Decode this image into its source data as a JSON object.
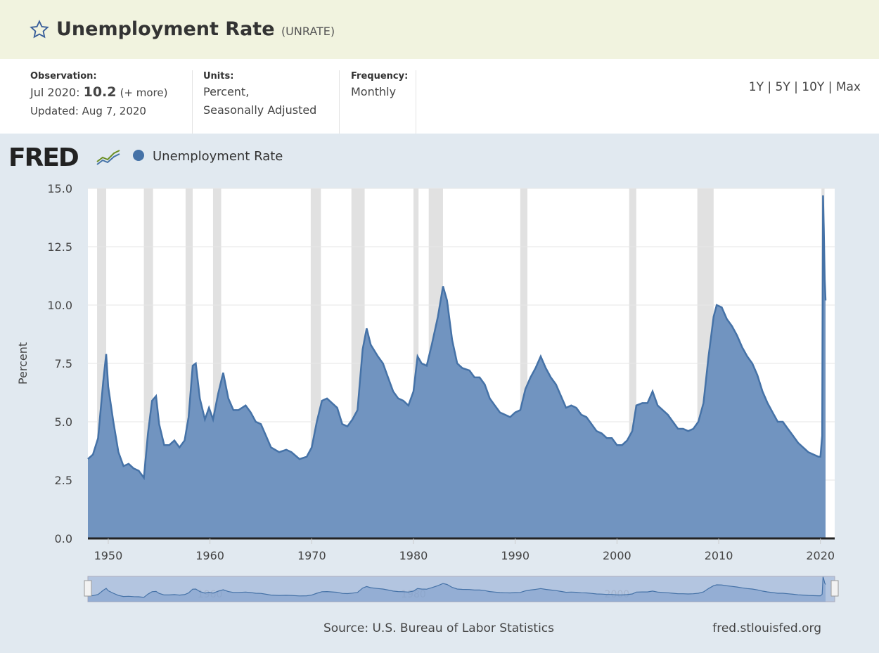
{
  "header": {
    "title": "Unemployment Rate",
    "series_id": "(UNRATE)",
    "observation_label": "Observation:",
    "observation_date": "Jul 2020:",
    "observation_value": "10.2",
    "more": "(+ more)",
    "updated": "Updated: Aug 7, 2020",
    "units_label": "Units:",
    "units_1": "Percent,",
    "units_2": "Seasonally Adjusted",
    "frequency_label": "Frequency:",
    "frequency": "Monthly",
    "ranges": [
      "1Y",
      "5Y",
      "10Y",
      "Max"
    ]
  },
  "logo": "FRED",
  "chart_data": {
    "type": "area",
    "y_label": "Percent",
    "color": "#4572a7",
    "fill": "#7194c0",
    "grid": true,
    "xlim": [
      1948,
      2021.4
    ],
    "xticks": [
      1950,
      1960,
      1970,
      1980,
      1990,
      2000,
      2010,
      2020
    ],
    "ylim": [
      0,
      15
    ],
    "yticks": [
      {
        "value": 0,
        "label": "0.0"
      },
      {
        "value": 2.5,
        "label": "2.5"
      },
      {
        "value": 5,
        "label": "5.0"
      },
      {
        "value": 7.5,
        "label": "7.5"
      },
      {
        "value": 10,
        "label": "10.0"
      },
      {
        "value": 12.5,
        "label": "12.5"
      },
      {
        "value": 15,
        "label": "15.0"
      }
    ],
    "recessions": [
      [
        1948.9,
        1949.8
      ],
      [
        1953.5,
        1954.4
      ],
      [
        1957.6,
        1958.3
      ],
      [
        1960.3,
        1961.1
      ],
      [
        1969.9,
        1970.9
      ],
      [
        1973.9,
        1975.2
      ],
      [
        1980.0,
        1980.5
      ],
      [
        1981.5,
        1982.9
      ],
      [
        1990.5,
        1991.2
      ],
      [
        2001.2,
        2001.9
      ],
      [
        2007.9,
        2009.5
      ],
      [
        2020.1,
        2020.4
      ]
    ],
    "x": [
      1948.0,
      1948.5,
      1949.0,
      1949.5,
      1949.8,
      1950.0,
      1950.5,
      1951.0,
      1951.5,
      1952.0,
      1952.5,
      1953.0,
      1953.5,
      1953.9,
      1954.3,
      1954.7,
      1955.0,
      1955.5,
      1956.0,
      1956.5,
      1957.0,
      1957.5,
      1957.9,
      1958.3,
      1958.6,
      1959.0,
      1959.5,
      1959.9,
      1960.3,
      1960.8,
      1961.3,
      1961.8,
      1962.3,
      1962.8,
      1963.5,
      1964.0,
      1964.5,
      1965.0,
      1965.5,
      1966.0,
      1966.8,
      1967.5,
      1968.0,
      1968.8,
      1969.5,
      1970.0,
      1970.5,
      1971.0,
      1971.5,
      1972.0,
      1972.5,
      1973.0,
      1973.5,
      1974.0,
      1974.5,
      1975.0,
      1975.4,
      1975.8,
      1976.5,
      1977.0,
      1977.5,
      1978.0,
      1978.5,
      1979.0,
      1979.5,
      1980.0,
      1980.4,
      1980.8,
      1981.3,
      1981.8,
      1982.4,
      1982.9,
      1983.3,
      1983.8,
      1984.3,
      1984.8,
      1985.5,
      1986.0,
      1986.5,
      1987.0,
      1987.5,
      1988.0,
      1988.5,
      1989.0,
      1989.5,
      1990.0,
      1990.5,
      1991.0,
      1991.5,
      1992.0,
      1992.5,
      1993.0,
      1993.5,
      1994.0,
      1994.5,
      1995.0,
      1995.5,
      1996.0,
      1996.5,
      1997.0,
      1997.5,
      1998.0,
      1998.5,
      1999.0,
      1999.5,
      2000.0,
      2000.5,
      2001.0,
      2001.5,
      2001.9,
      2002.5,
      2003.0,
      2003.5,
      2004.0,
      2004.5,
      2005.0,
      2005.5,
      2006.0,
      2006.5,
      2007.0,
      2007.5,
      2008.0,
      2008.5,
      2009.0,
      2009.5,
      2009.8,
      2010.3,
      2010.8,
      2011.3,
      2011.8,
      2012.3,
      2012.8,
      2013.3,
      2013.8,
      2014.3,
      2014.8,
      2015.3,
      2015.8,
      2016.3,
      2016.8,
      2017.3,
      2017.8,
      2018.3,
      2018.8,
      2019.3,
      2019.8,
      2020.0,
      2020.17,
      2020.25,
      2020.33,
      2020.42,
      2020.5
    ],
    "series": [
      {
        "name": "Unemployment Rate",
        "values": [
          3.4,
          3.6,
          4.3,
          6.7,
          7.9,
          6.5,
          5.0,
          3.7,
          3.1,
          3.2,
          3.0,
          2.9,
          2.6,
          4.5,
          5.9,
          6.1,
          4.9,
          4.0,
          4.0,
          4.2,
          3.9,
          4.2,
          5.2,
          7.4,
          7.5,
          6.0,
          5.1,
          5.6,
          5.1,
          6.2,
          7.1,
          6.0,
          5.5,
          5.5,
          5.7,
          5.4,
          5.0,
          4.9,
          4.4,
          3.9,
          3.7,
          3.8,
          3.7,
          3.4,
          3.5,
          3.9,
          5.0,
          5.9,
          6.0,
          5.8,
          5.6,
          4.9,
          4.8,
          5.1,
          5.5,
          8.1,
          9.0,
          8.3,
          7.8,
          7.5,
          6.9,
          6.3,
          6.0,
          5.9,
          5.7,
          6.3,
          7.8,
          7.5,
          7.4,
          8.3,
          9.5,
          10.8,
          10.2,
          8.5,
          7.5,
          7.3,
          7.2,
          6.9,
          6.9,
          6.6,
          6.0,
          5.7,
          5.4,
          5.3,
          5.2,
          5.4,
          5.5,
          6.4,
          6.9,
          7.3,
          7.8,
          7.3,
          6.9,
          6.6,
          6.1,
          5.6,
          5.7,
          5.6,
          5.3,
          5.2,
          4.9,
          4.6,
          4.5,
          4.3,
          4.3,
          4.0,
          4.0,
          4.2,
          4.6,
          5.7,
          5.8,
          5.8,
          6.3,
          5.7,
          5.5,
          5.3,
          5.0,
          4.7,
          4.7,
          4.6,
          4.7,
          5.0,
          5.8,
          7.8,
          9.5,
          10.0,
          9.9,
          9.4,
          9.1,
          8.7,
          8.2,
          7.8,
          7.5,
          7.0,
          6.3,
          5.8,
          5.4,
          5.0,
          5.0,
          4.7,
          4.4,
          4.1,
          3.9,
          3.7,
          3.6,
          3.5,
          3.5,
          4.4,
          14.7,
          13.3,
          11.1,
          10.2
        ]
      }
    ],
    "navigator_ticks": [
      1960,
      1980,
      2000
    ],
    "source": "Source: U.S. Bureau of Labor Statistics",
    "site": "fred.stlouisfed.org"
  }
}
